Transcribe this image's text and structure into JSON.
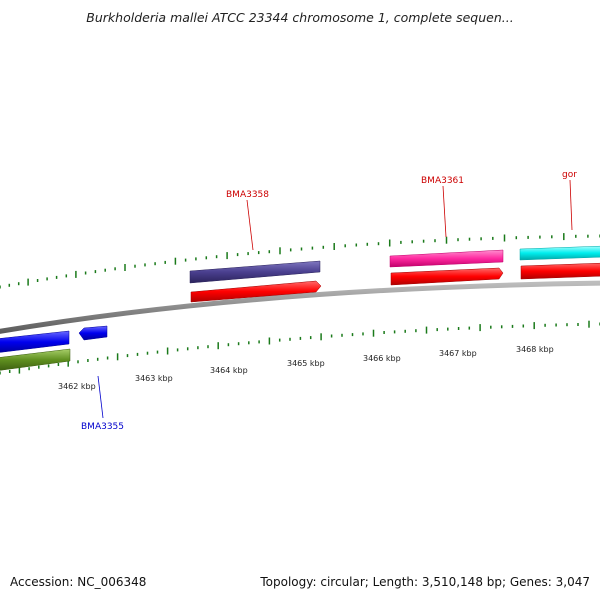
{
  "title": "Burkholderia mallei ATCC 23344 chromosome 1, complete sequen...",
  "footer": {
    "accession": "Accession: NC_006348",
    "summary": "Topology: circular; Length: 3,510,148 bp; Genes: 3,047"
  },
  "scale_labels": [
    "3462 kbp",
    "3463 kbp",
    "3464 kbp",
    "3465 kbp",
    "3466 kbp",
    "3467 kbp",
    "3468 kbp"
  ],
  "gene_labels": [
    {
      "text": "BMA3358",
      "color": "#cc0000"
    },
    {
      "text": "BMA3361",
      "color": "#cc0000"
    },
    {
      "text": "gor",
      "color": "#cc0000"
    },
    {
      "text": "BMA3355",
      "color": "#0000cc"
    }
  ],
  "colors": {
    "backbone": "#888888",
    "tick": "#1a7a1a",
    "red_feature": "#ff0000",
    "slate_feature": "#4a3f8f",
    "pink_feature": "#ff2aa0",
    "cyan_feature": "#00eeee",
    "blue_feature": "#0000ee",
    "olive_feature": "#5f8f1f"
  }
}
